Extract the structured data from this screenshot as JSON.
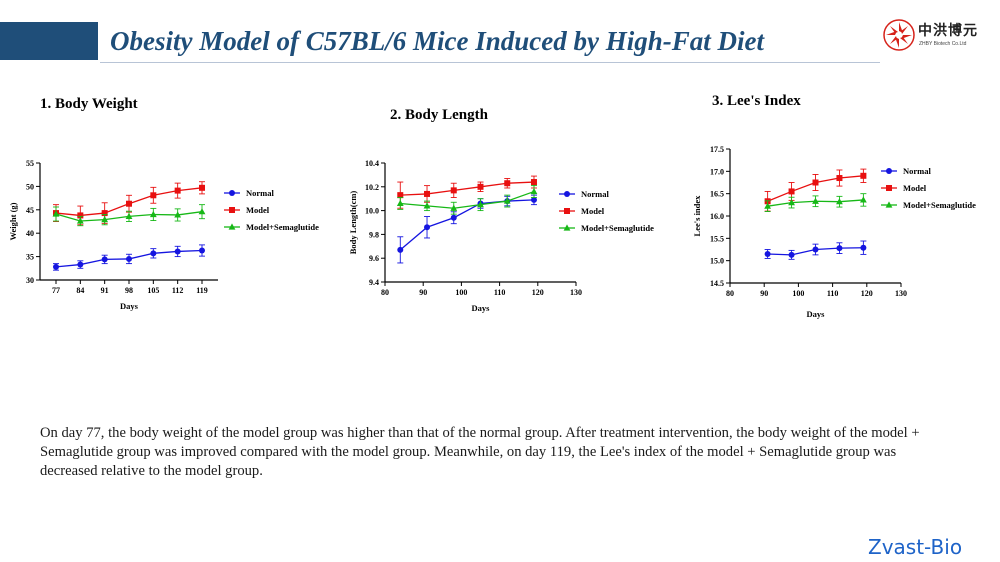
{
  "title": "Obesity Model of C57BL/6 Mice Induced by High-Fat Diet",
  "logo": {
    "name_cn": "中洪博元",
    "name_en": "ZHBY Biotech Co.Ltd"
  },
  "description": "On day 77, the body weight of the model group was higher than that of the normal group. After treatment intervention, the body weight of the model + Semaglutide group was improved compared with the model group. Meanwhile, on day 119, the Lee's index of the model + Semaglutide group was decreased relative to the model group.",
  "brand": "Zvast-Bio",
  "colors": {
    "title": "#1f4e79",
    "header_bar": "#1f4e79",
    "brand": "#1e63c8",
    "normal": "#1515e0",
    "model": "#e81010",
    "semaglutide": "#17b817"
  },
  "chart_data": [
    {
      "id": "body-weight",
      "type": "line",
      "title": "1. Body Weight",
      "xlabel": "Days",
      "ylabel": "Weight (g)",
      "x": [
        77,
        84,
        91,
        98,
        105,
        112,
        119
      ],
      "xticks": [
        "77",
        "84",
        "91",
        "98",
        "105",
        "112",
        "119"
      ],
      "xcategorical": true,
      "ylim": [
        30,
        55
      ],
      "yticks": [
        30,
        35,
        40,
        45,
        50,
        55
      ],
      "series": [
        {
          "name": "Normal",
          "marker": "circle",
          "color": "#1515e0",
          "x": [
            77,
            84,
            91,
            98,
            105,
            112,
            119
          ],
          "values": [
            32.8,
            33.3,
            34.4,
            34.5,
            35.7,
            36.1,
            36.3
          ],
          "errors": [
            0.7,
            0.8,
            0.9,
            1.0,
            1.0,
            1.1,
            1.2
          ]
        },
        {
          "name": "Model",
          "marker": "square",
          "color": "#e81010",
          "x": [
            77,
            84,
            91,
            98,
            105,
            112,
            119
          ],
          "values": [
            44.3,
            43.8,
            44.3,
            46.3,
            48.1,
            49.1,
            49.7
          ],
          "errors": [
            1.8,
            2.0,
            2.2,
            1.8,
            1.7,
            1.6,
            1.3
          ]
        },
        {
          "name": "Model+Semaglutide",
          "marker": "triangle",
          "color": "#17b817",
          "x": [
            77,
            84,
            91,
            98,
            105,
            112,
            119
          ],
          "values": [
            44.1,
            42.6,
            42.9,
            43.6,
            44.0,
            43.9,
            44.6
          ],
          "errors": [
            1.5,
            1.0,
            1.1,
            1.1,
            1.3,
            1.3,
            1.5
          ]
        }
      ]
    },
    {
      "id": "body-length",
      "type": "line",
      "title": "2. Body Length",
      "xlabel": "Days",
      "ylabel": "Body Length(cm)",
      "xlim": [
        80,
        130
      ],
      "xticks": [
        "80",
        "90",
        "100",
        "110",
        "120",
        "130"
      ],
      "ylim": [
        9.4,
        10.4
      ],
      "yticks": [
        "9.4",
        "9.6",
        "9.8",
        "10.0",
        "10.2",
        "10.4"
      ],
      "series": [
        {
          "name": "Normal",
          "marker": "circle",
          "color": "#1515e0",
          "x": [
            84,
            91,
            98,
            105,
            112,
            119
          ],
          "values": [
            9.67,
            9.86,
            9.94,
            10.06,
            10.08,
            10.09
          ],
          "errors": [
            0.11,
            0.09,
            0.05,
            0.04,
            0.04,
            0.04
          ]
        },
        {
          "name": "Model",
          "marker": "square",
          "color": "#e81010",
          "x": [
            84,
            91,
            98,
            105,
            112,
            119
          ],
          "values": [
            10.13,
            10.14,
            10.17,
            10.2,
            10.23,
            10.24
          ],
          "errors": [
            0.11,
            0.07,
            0.06,
            0.04,
            0.04,
            0.05
          ]
        },
        {
          "name": "Model+Semaglutide",
          "marker": "triangle",
          "color": "#17b817",
          "x": [
            84,
            91,
            98,
            105,
            112,
            119
          ],
          "values": [
            10.06,
            10.04,
            10.02,
            10.05,
            10.08,
            10.16
          ],
          "errors": [
            0.05,
            0.04,
            0.05,
            0.05,
            0.05,
            0.05
          ]
        }
      ]
    },
    {
      "id": "lees-index",
      "type": "line",
      "title": "3. Lee's Index",
      "xlabel": "Days",
      "ylabel": "Lee's index",
      "xlim": [
        80,
        130
      ],
      "xticks": [
        "80",
        "90",
        "100",
        "110",
        "120",
        "130"
      ],
      "ylim": [
        14.5,
        17.5
      ],
      "yticks": [
        "14.5",
        "15.0",
        "15.5",
        "16.0",
        "16.5",
        "17.0",
        "17.5"
      ],
      "series": [
        {
          "name": "Normal",
          "marker": "circle",
          "color": "#1515e0",
          "x": [
            91,
            98,
            105,
            112,
            119
          ],
          "values": [
            15.15,
            15.13,
            15.25,
            15.28,
            15.29
          ],
          "errors": [
            0.1,
            0.1,
            0.12,
            0.12,
            0.15
          ]
        },
        {
          "name": "Model",
          "marker": "square",
          "color": "#e81010",
          "x": [
            91,
            98,
            105,
            112,
            119
          ],
          "values": [
            16.33,
            16.55,
            16.75,
            16.85,
            16.9
          ],
          "errors": [
            0.22,
            0.2,
            0.18,
            0.18,
            0.15
          ]
        },
        {
          "name": "Model+Semaglutide",
          "marker": "triangle",
          "color": "#17b817",
          "x": [
            91,
            98,
            105,
            112,
            119
          ],
          "values": [
            16.22,
            16.3,
            16.33,
            16.32,
            16.36
          ],
          "errors": [
            0.12,
            0.12,
            0.12,
            0.12,
            0.14
          ]
        }
      ]
    }
  ]
}
